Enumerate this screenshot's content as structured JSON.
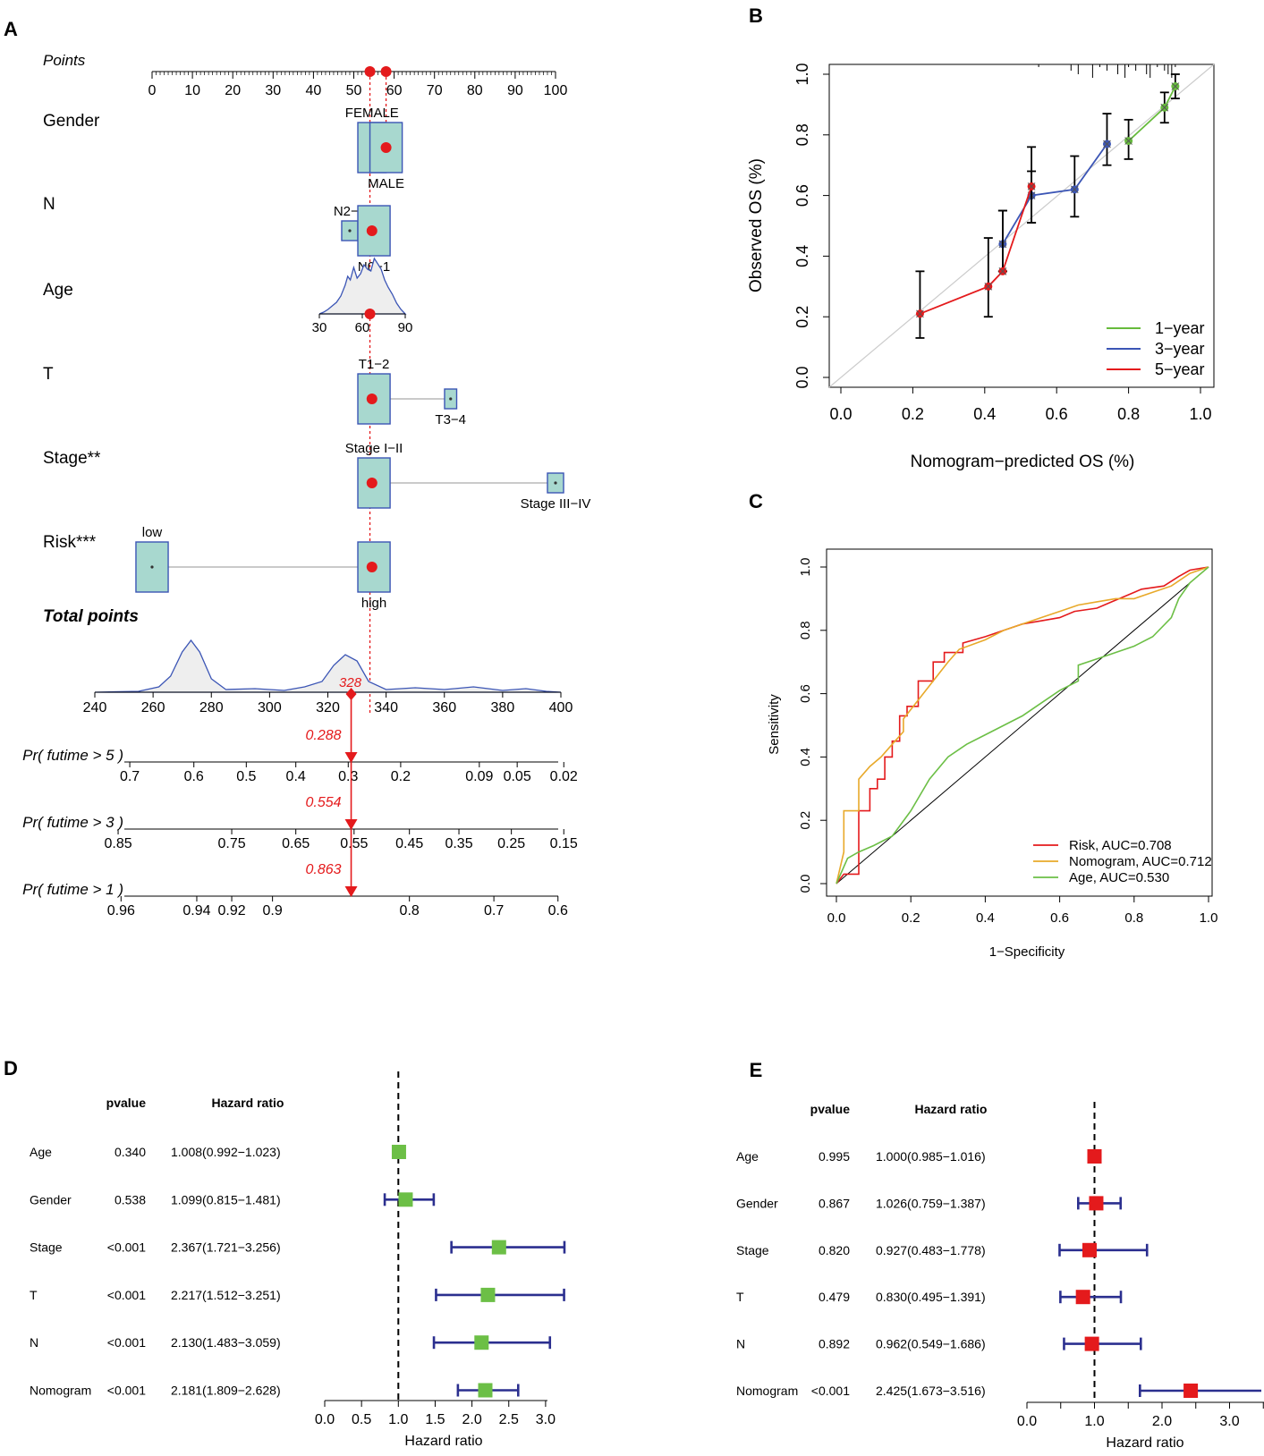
{
  "colors": {
    "accent": "#e41a1c",
    "box_fill": "#a8d8cf",
    "box_stroke": "#3b55b5",
    "density_stroke": "#3b55b5",
    "density_fill": "#eeeeee",
    "green": "#66bb3c",
    "blue": "#3b55b5",
    "red": "#e41a1c",
    "orange": "#e8a92a",
    "navy": "#2b2f8f",
    "forest_green": "#6cbf46",
    "forest_red": "#e41a1c"
  },
  "chart_data": [
    {
      "panel": "A",
      "type": "nomogram",
      "panel_label": "A",
      "points_axis": {
        "label": "Points",
        "ticks": [
          "0",
          "10",
          "20",
          "30",
          "40",
          "50",
          "60",
          "70",
          "80",
          "90",
          "100"
        ],
        "min": 0,
        "max": 100
      },
      "points_markers": [
        54,
        58
      ],
      "reference_lines": [
        54,
        58
      ],
      "variables": [
        {
          "name": "Gender",
          "levels": [
            {
              "label": "FEMALE",
              "points": 55,
              "box": [
                51,
                58
              ],
              "label_pos": "top"
            },
            {
              "label": "MALE",
              "points": 58,
              "box": [
                54,
                62
              ],
              "label_pos": "bottom"
            }
          ],
          "selected": 58
        },
        {
          "name": "N",
          "levels": [
            {
              "label": "N2−3",
              "points": 49,
              "box": [
                47,
                51
              ],
              "label_pos": "top"
            },
            {
              "label": "N0−1",
              "points": 54.5,
              "box": [
                51,
                59
              ],
              "label_pos": "bottom"
            }
          ],
          "selected": 54.5
        },
        {
          "name": "Age",
          "density": true,
          "range": [
            30,
            90
          ],
          "tick_labels": [
            "30",
            "60",
            "90"
          ],
          "selected": 54
        }
      ],
      "factor_rows": [
        {
          "name": "T",
          "levels": [
            {
              "label": "T1−2",
              "points": 54.5,
              "box": [
                51,
                59
              ],
              "label_pos": "top"
            },
            {
              "label": "T3−4",
              "points": 74,
              "box": [
                72.5,
                75.5
              ],
              "label_pos": "bottom"
            }
          ],
          "selected": 54.5
        },
        {
          "name": "Stage**",
          "levels": [
            {
              "label": "Stage I−II",
              "points": 54.5,
              "box": [
                51,
                59
              ],
              "label_pos": "top"
            },
            {
              "label": "Stage III−IV",
              "points": 100,
              "box": [
                98,
                102
              ],
              "label_pos": "bottom"
            }
          ],
          "selected": 54.5
        },
        {
          "name": "Risk***",
          "levels": [
            {
              "label": "low",
              "points": 0,
              "box": [
                -4,
                4
              ],
              "label_pos": "top"
            },
            {
              "label": "high",
              "points": 54.5,
              "box": [
                51,
                59
              ],
              "label_pos": "bottom"
            }
          ],
          "selected": 54.5
        }
      ],
      "total_points": {
        "label": "Total points",
        "ticks": [
          "240",
          "260",
          "280",
          "300",
          "320",
          "340",
          "360",
          "380",
          "400"
        ],
        "min": 240,
        "max": 400,
        "value": 328,
        "value_label": "328"
      },
      "probabilities": [
        {
          "label": "Pr( futime > 5 )",
          "ticks": [
            "0.7",
            "0.6",
            "0.5",
            "0.4",
            "0.3",
            "0.2",
            "0.09",
            "0.05",
            "0.02"
          ],
          "tick_points": [
            252,
            274,
            292,
            309,
            327,
            345,
            372,
            385,
            401
          ],
          "value": 0.288,
          "value_label": "0.288"
        },
        {
          "label": "Pr( futime > 3 )",
          "ticks": [
            "0.85",
            "0.75",
            "0.65",
            "0.55",
            "0.45",
            "0.35",
            "0.25",
            "0.15"
          ],
          "tick_points": [
            248,
            287,
            309,
            329,
            348,
            365,
            383,
            401
          ],
          "value": 0.554,
          "value_label": "0.554"
        },
        {
          "label": "Pr( futime > 1 )",
          "ticks": [
            "0.96",
            "0.94",
            "0.92",
            "0.9",
            "0.8",
            "0.7",
            "0.6"
          ],
          "tick_points": [
            249,
            275,
            287,
            301,
            348,
            377,
            399
          ],
          "value": 0.863,
          "value_label": "0.863"
        }
      ]
    },
    {
      "panel": "B",
      "type": "line",
      "panel_label": "B",
      "xlabel": "Nomogram−predicted OS (%)",
      "ylabel": "Observed OS (%)",
      "xlim": [
        0,
        1.0
      ],
      "ylim": [
        0,
        1.0
      ],
      "xticks": [
        "0.0",
        "0.2",
        "0.4",
        "0.6",
        "0.8",
        "1.0"
      ],
      "yticks": [
        "0.0",
        "0.2",
        "0.4",
        "0.6",
        "0.8",
        "1.0"
      ],
      "legend": [
        "1−year",
        "3−year",
        "5−year"
      ],
      "series": [
        {
          "name": "1−year",
          "x": [
            0.8,
            0.9,
            0.93
          ],
          "y": [
            0.78,
            0.89,
            0.96
          ],
          "err_low": [
            0.72,
            0.84,
            0.92
          ],
          "err_high": [
            0.85,
            0.94,
            1.0
          ]
        },
        {
          "name": "3−year",
          "x": [
            0.45,
            0.53,
            0.65,
            0.74
          ],
          "y": [
            0.44,
            0.6,
            0.62,
            0.77
          ],
          "err_low": [
            0.35,
            0.51,
            0.53,
            0.7
          ],
          "err_high": [
            0.55,
            0.68,
            0.73,
            0.87
          ]
        },
        {
          "name": "5−year",
          "x": [
            0.22,
            0.41,
            0.45,
            0.53
          ],
          "y": [
            0.21,
            0.3,
            0.35,
            0.63
          ],
          "err_low": [
            0.13,
            0.2,
            0.35,
            0.51
          ],
          "err_high": [
            0.35,
            0.46,
            0.55,
            0.76
          ]
        }
      ]
    },
    {
      "panel": "C",
      "type": "line",
      "panel_label": "C",
      "xlabel": "1−Specificity",
      "ylabel": "Sensitivity",
      "xlim": [
        0,
        1.0
      ],
      "ylim": [
        0,
        1.0
      ],
      "xticks": [
        "0.0",
        "0.2",
        "0.4",
        "0.6",
        "0.8",
        "1.0"
      ],
      "yticks": [
        "0.0",
        "0.2",
        "0.4",
        "0.6",
        "0.8",
        "1.0"
      ],
      "legend": [
        "Risk, AUC=0.708",
        "Nomogram, AUC=0.712",
        "Age, AUC=0.530"
      ],
      "series": [
        {
          "name": "Risk, AUC=0.708",
          "x": [
            0.0,
            0.02,
            0.06,
            0.06,
            0.09,
            0.09,
            0.11,
            0.11,
            0.13,
            0.13,
            0.15,
            0.15,
            0.17,
            0.17,
            0.19,
            0.19,
            0.22,
            0.22,
            0.26,
            0.26,
            0.29,
            0.29,
            0.34,
            0.34,
            0.4,
            0.45,
            0.5,
            0.55,
            0.6,
            0.64,
            0.7,
            0.74,
            0.78,
            0.82,
            0.88,
            0.92,
            0.95,
            1.0
          ],
          "y": [
            0.0,
            0.03,
            0.03,
            0.23,
            0.23,
            0.3,
            0.3,
            0.33,
            0.33,
            0.4,
            0.4,
            0.45,
            0.45,
            0.53,
            0.53,
            0.56,
            0.56,
            0.64,
            0.64,
            0.7,
            0.7,
            0.73,
            0.73,
            0.76,
            0.78,
            0.8,
            0.82,
            0.83,
            0.84,
            0.86,
            0.87,
            0.89,
            0.91,
            0.93,
            0.94,
            0.97,
            0.99,
            1.0
          ]
        },
        {
          "name": "Nomogram, AUC=0.712",
          "x": [
            0.0,
            0.02,
            0.02,
            0.06,
            0.06,
            0.09,
            0.12,
            0.15,
            0.18,
            0.18,
            0.22,
            0.26,
            0.3,
            0.33,
            0.4,
            0.45,
            0.5,
            0.55,
            0.6,
            0.65,
            0.7,
            0.75,
            0.8,
            0.85,
            0.9,
            0.95,
            1.0
          ],
          "y": [
            0.0,
            0.1,
            0.23,
            0.23,
            0.33,
            0.37,
            0.4,
            0.44,
            0.48,
            0.52,
            0.58,
            0.64,
            0.7,
            0.74,
            0.77,
            0.8,
            0.82,
            0.84,
            0.86,
            0.88,
            0.89,
            0.9,
            0.9,
            0.92,
            0.94,
            0.98,
            1.0
          ]
        },
        {
          "name": "Age, AUC=0.530",
          "x": [
            0.0,
            0.03,
            0.06,
            0.1,
            0.15,
            0.2,
            0.25,
            0.3,
            0.35,
            0.4,
            0.45,
            0.5,
            0.55,
            0.6,
            0.65,
            0.65,
            0.7,
            0.75,
            0.8,
            0.85,
            0.9,
            0.92,
            0.95,
            1.0
          ],
          "y": [
            0.0,
            0.08,
            0.1,
            0.12,
            0.15,
            0.23,
            0.33,
            0.4,
            0.44,
            0.47,
            0.5,
            0.53,
            0.57,
            0.61,
            0.64,
            0.69,
            0.71,
            0.73,
            0.75,
            0.78,
            0.84,
            0.9,
            0.95,
            1.0
          ]
        }
      ]
    },
    {
      "panel": "D",
      "type": "forest",
      "panel_label": "D",
      "headers": {
        "pvalue": "pvalue",
        "hr": "Hazard ratio"
      },
      "xlabel": "Hazard ratio",
      "xlim": [
        0,
        3.0
      ],
      "xticks": [
        "0.0",
        "0.5",
        "1.0",
        "1.5",
        "2.0",
        "2.5",
        "3.0"
      ],
      "rows": [
        {
          "name": "Age",
          "pvalue": "0.340",
          "hr_text": "1.008(0.992−1.023)",
          "hr": 1.008,
          "low": 0.992,
          "high": 1.023
        },
        {
          "name": "Gender",
          "pvalue": "0.538",
          "hr_text": "1.099(0.815−1.481)",
          "hr": 1.099,
          "low": 0.815,
          "high": 1.481
        },
        {
          "name": "Stage",
          "pvalue": "<0.001",
          "hr_text": "2.367(1.721−3.256)",
          "hr": 2.367,
          "low": 1.721,
          "high": 3.256
        },
        {
          "name": "T",
          "pvalue": "<0.001",
          "hr_text": "2.217(1.512−3.251)",
          "hr": 2.217,
          "low": 1.512,
          "high": 3.251
        },
        {
          "name": "N",
          "pvalue": "<0.001",
          "hr_text": "2.130(1.483−3.059)",
          "hr": 2.13,
          "low": 1.483,
          "high": 3.059
        },
        {
          "name": "Nomogram",
          "pvalue": "<0.001",
          "hr_text": "2.181(1.809−2.628)",
          "hr": 2.181,
          "low": 1.809,
          "high": 2.628
        }
      ]
    },
    {
      "panel": "E",
      "type": "forest",
      "panel_label": "E",
      "headers": {
        "pvalue": "pvalue",
        "hr": "Hazard ratio"
      },
      "xlabel": "Hazard ratio",
      "xlim": [
        0,
        3.516
      ],
      "xticks": [
        "0.0",
        "1.0",
        "2.0",
        "3.0"
      ],
      "rows": [
        {
          "name": "Age",
          "pvalue": "0.995",
          "hr_text": "1.000(0.985−1.016)",
          "hr": 1.0,
          "low": 0.985,
          "high": 1.016
        },
        {
          "name": "Gender",
          "pvalue": "0.867",
          "hr_text": "1.026(0.759−1.387)",
          "hr": 1.026,
          "low": 0.759,
          "high": 1.387
        },
        {
          "name": "Stage",
          "pvalue": "0.820",
          "hr_text": "0.927(0.483−1.778)",
          "hr": 0.927,
          "low": 0.483,
          "high": 1.778
        },
        {
          "name": "T",
          "pvalue": "0.479",
          "hr_text": "0.830(0.495−1.391)",
          "hr": 0.83,
          "low": 0.495,
          "high": 1.391
        },
        {
          "name": "N",
          "pvalue": "0.892",
          "hr_text": "0.962(0.549−1.686)",
          "hr": 0.962,
          "low": 0.549,
          "high": 1.686
        },
        {
          "name": "Nomogram",
          "pvalue": "<0.001",
          "hr_text": "2.425(1.673−3.516)",
          "hr": 2.425,
          "low": 1.673,
          "high": 3.516
        }
      ]
    }
  ]
}
